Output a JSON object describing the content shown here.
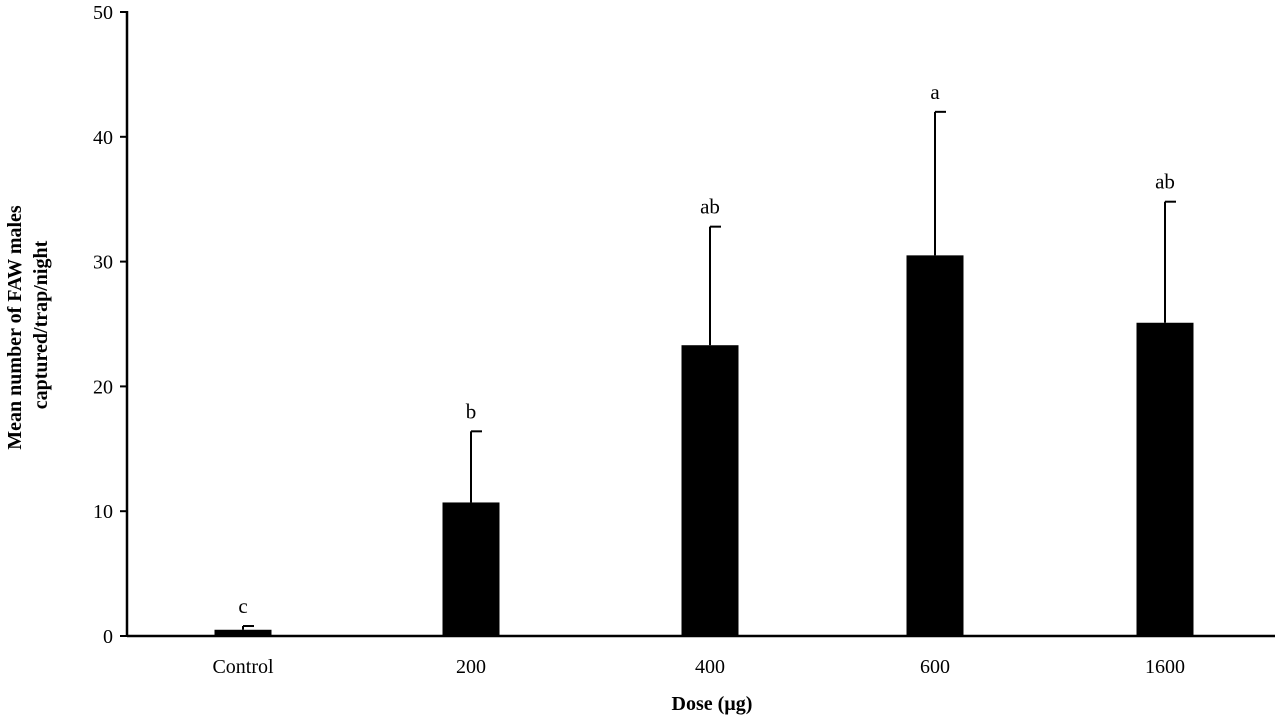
{
  "chart_data": {
    "type": "bar",
    "title": "",
    "xlabel": "Dose  (µg)",
    "ylabel_lines": [
      "Mean  number of FAW males",
      "captured/trap/night"
    ],
    "categories": [
      "Control",
      "200",
      "400",
      "600",
      "1600"
    ],
    "values": [
      0.5,
      10.7,
      23.3,
      30.5,
      25.1
    ],
    "error_upper": [
      0.3,
      5.7,
      9.5,
      11.5,
      9.7
    ],
    "significance_labels": [
      "c",
      "b",
      "ab",
      "a",
      "ab"
    ],
    "ylim": [
      0,
      50
    ],
    "yticks": [
      0,
      10,
      20,
      30,
      40,
      50
    ],
    "ytick_labels": [
      "0",
      "10",
      "20",
      "30",
      "40",
      "50"
    ],
    "grid": false,
    "legend": "none",
    "bar_color": "#000000"
  }
}
